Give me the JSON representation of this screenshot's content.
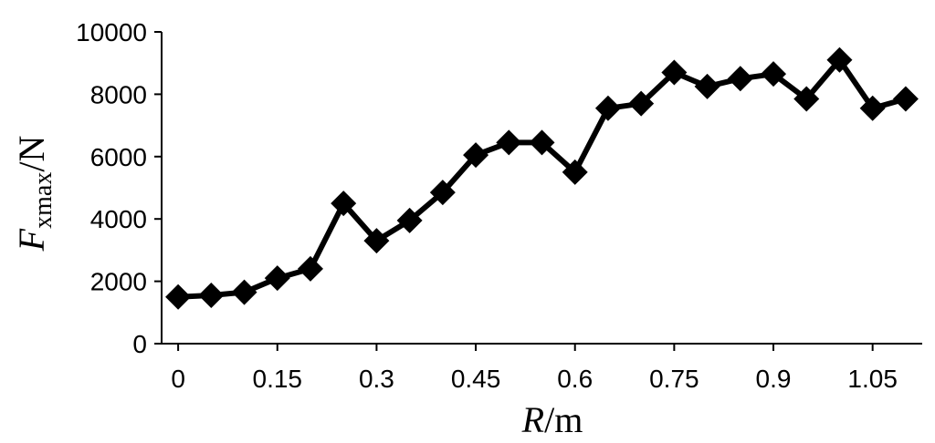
{
  "chart_data": {
    "type": "line",
    "x": [
      0,
      0.05,
      0.1,
      0.15,
      0.2,
      0.25,
      0.3,
      0.35,
      0.4,
      0.45,
      0.5,
      0.55,
      0.6,
      0.65,
      0.7,
      0.75,
      0.8,
      0.85,
      0.9,
      0.95,
      1.0,
      1.05,
      1.1
    ],
    "series": [
      {
        "values": [
          1500,
          1550,
          1650,
          2100,
          2400,
          4500,
          3300,
          3950,
          4850,
          6050,
          6450,
          6450,
          5500,
          7550,
          7700,
          8700,
          8250,
          8500,
          8650,
          7850,
          9100,
          7550,
          7850
        ],
        "color": "#000000",
        "marker": "diamond"
      }
    ],
    "xlim": [
      -0.025,
      1.125
    ],
    "ylim": [
      0,
      10000
    ],
    "x_ticks": [
      "0",
      "0.15",
      "0.3",
      "0.45",
      "0.6",
      "0.75",
      "0.9",
      "1.05"
    ],
    "x_tick_values": [
      0,
      0.15,
      0.3,
      0.45,
      0.6,
      0.75,
      0.9,
      1.05
    ],
    "y_ticks": [
      "0",
      "2000",
      "4000",
      "6000",
      "8000",
      "10000"
    ],
    "y_tick_values": [
      0,
      2000,
      4000,
      6000,
      8000,
      10000
    ],
    "xlabel": {
      "var": "R",
      "unit": "/m"
    },
    "ylabel": {
      "var": "F",
      "sub": "xmax",
      "unit": "/N"
    },
    "grid": false,
    "legend": "none"
  }
}
